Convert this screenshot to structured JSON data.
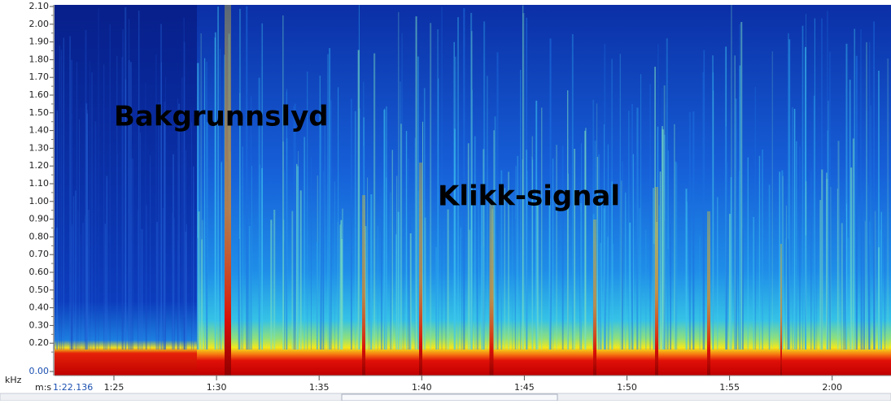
{
  "y_axis": {
    "unit": "kHz",
    "labels": [
      "2.10",
      "2.00",
      "1.90",
      "1.80",
      "1.70",
      "1.60",
      "1.50",
      "1.40",
      "1.30",
      "1.20",
      "1.10",
      "1.00",
      "0.90",
      "0.80",
      "0.70",
      "0.60",
      "0.50",
      "0.40",
      "0.30",
      "0.20",
      "0.00"
    ]
  },
  "x_axis": {
    "unit": "m:s",
    "start": "1:22.136",
    "labels": [
      "1:25",
      "1:30",
      "1:35",
      "1:40",
      "1:45",
      "1:50",
      "1:55",
      "2:00"
    ]
  },
  "annotations": [
    "Bakgrunnslyd",
    "Klikk-signal"
  ]
}
